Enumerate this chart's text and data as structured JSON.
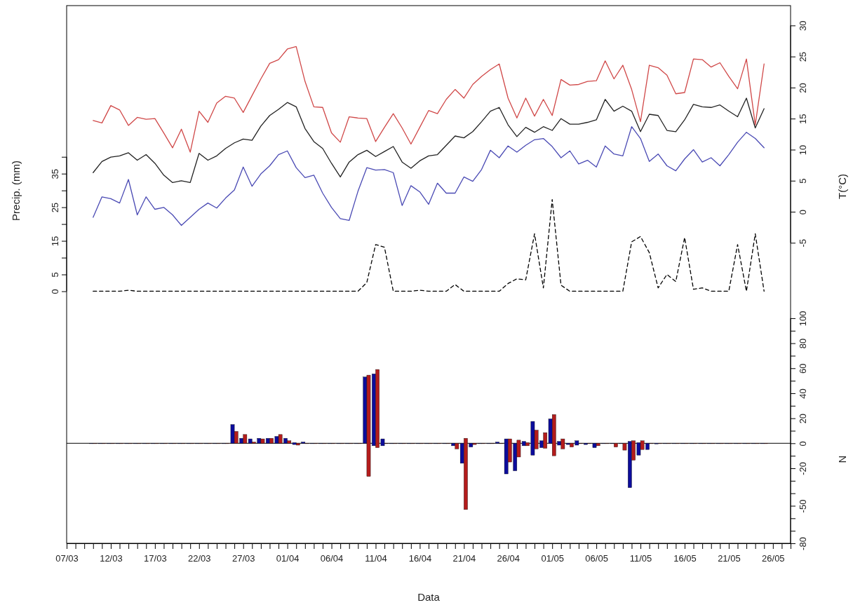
{
  "chart_data": {
    "type": "line",
    "xlabel": "Data",
    "ylabel": "Precip. (mm)",
    "y2label": "T(°C)",
    "y3label": "N",
    "x": [
      "--03-10",
      "--03-11",
      "--03-12",
      "--03-13",
      "--03-14",
      "--03-15",
      "--03-16",
      "--03-17",
      "--03-18",
      "--03-19",
      "--03-20",
      "--03-21",
      "--03-22",
      "--03-23",
      "--03-24",
      "--03-25",
      "--03-26",
      "--03-27",
      "--03-28",
      "--03-29",
      "--03-30",
      "--03-31",
      "--04-01",
      "--04-02",
      "--04-03",
      "--04-04",
      "--04-05",
      "--04-06",
      "--04-07",
      "--04-08",
      "--04-09",
      "--04-10",
      "--04-11",
      "--04-12",
      "--04-13",
      "--04-14",
      "--04-15",
      "--04-16",
      "--04-17",
      "--04-18",
      "--04-19",
      "--04-20",
      "--04-21",
      "--04-22",
      "--04-23",
      "--04-24",
      "--04-25",
      "--04-26",
      "--04-27",
      "--04-28",
      "--04-29",
      "--04-30",
      "--05-01",
      "--05-02",
      "--05-03",
      "--05-04",
      "--05-05",
      "--05-06",
      "--05-07",
      "--05-08",
      "--05-09",
      "--05-10",
      "--05-11",
      "--05-12",
      "--05-13",
      "--05-14",
      "--05-15",
      "--05-16",
      "--05-17",
      "--05-18",
      "--05-19",
      "--05-20",
      "--05-21",
      "--05-22",
      "--05-23",
      "--05-24",
      "--05-25"
    ],
    "xlim": [
      "--03-07",
      "--05-28"
    ],
    "xticks": [
      {
        "value": "--03-07",
        "label": "07/03"
      },
      {
        "value": "--03-08",
        "label": null
      },
      {
        "value": "--03-09",
        "label": null
      },
      {
        "value": "--03-10",
        "label": null
      },
      {
        "value": "--03-11",
        "label": null
      },
      {
        "value": "--03-12",
        "label": "12/03"
      },
      {
        "value": "--03-13",
        "label": null
      },
      {
        "value": "--03-14",
        "label": null
      },
      {
        "value": "--03-15",
        "label": null
      },
      {
        "value": "--03-16",
        "label": null
      },
      {
        "value": "--03-17",
        "label": "17/03"
      },
      {
        "value": "--03-18",
        "label": null
      },
      {
        "value": "--03-19",
        "label": null
      },
      {
        "value": "--03-20",
        "label": null
      },
      {
        "value": "--03-21",
        "label": null
      },
      {
        "value": "--03-22",
        "label": "22/03"
      },
      {
        "value": "--03-23",
        "label": null
      },
      {
        "value": "--03-24",
        "label": null
      },
      {
        "value": "--03-25",
        "label": null
      },
      {
        "value": "--03-26",
        "label": null
      },
      {
        "value": "--03-27",
        "label": "27/03"
      },
      {
        "value": "--03-28",
        "label": null
      },
      {
        "value": "--03-29",
        "label": null
      },
      {
        "value": "--03-30",
        "label": null
      },
      {
        "value": "--03-31",
        "label": null
      },
      {
        "value": "--04-01",
        "label": "01/04"
      },
      {
        "value": "--04-02",
        "label": null
      },
      {
        "value": "--04-03",
        "label": null
      },
      {
        "value": "--04-04",
        "label": null
      },
      {
        "value": "--04-05",
        "label": null
      },
      {
        "value": "--04-06",
        "label": "06/04"
      },
      {
        "value": "--04-07",
        "label": null
      },
      {
        "value": "--04-08",
        "label": null
      },
      {
        "value": "--04-09",
        "label": null
      },
      {
        "value": "--04-10",
        "label": null
      },
      {
        "value": "--04-11",
        "label": "11/04"
      },
      {
        "value": "--04-12",
        "label": null
      },
      {
        "value": "--04-13",
        "label": null
      },
      {
        "value": "--04-14",
        "label": null
      },
      {
        "value": "--04-15",
        "label": null
      },
      {
        "value": "--04-16",
        "label": "16/04"
      },
      {
        "value": "--04-17",
        "label": null
      },
      {
        "value": "--04-18",
        "label": null
      },
      {
        "value": "--04-19",
        "label": null
      },
      {
        "value": "--04-20",
        "label": null
      },
      {
        "value": "--04-21",
        "label": "21/04"
      },
      {
        "value": "--04-22",
        "label": null
      },
      {
        "value": "--04-23",
        "label": null
      },
      {
        "value": "--04-24",
        "label": null
      },
      {
        "value": "--04-25",
        "label": null
      },
      {
        "value": "--04-26",
        "label": "26/04"
      },
      {
        "value": "--04-27",
        "label": null
      },
      {
        "value": "--04-28",
        "label": null
      },
      {
        "value": "--04-29",
        "label": null
      },
      {
        "value": "--04-30",
        "label": null
      },
      {
        "value": "--05-01",
        "label": "01/05"
      },
      {
        "value": "--05-02",
        "label": null
      },
      {
        "value": "--05-03",
        "label": null
      },
      {
        "value": "--05-04",
        "label": null
      },
      {
        "value": "--05-05",
        "label": null
      },
      {
        "value": "--05-06",
        "label": "06/05"
      },
      {
        "value": "--05-07",
        "label": null
      },
      {
        "value": "--05-08",
        "label": null
      },
      {
        "value": "--05-09",
        "label": null
      },
      {
        "value": "--05-10",
        "label": null
      },
      {
        "value": "--05-11",
        "label": "11/05"
      },
      {
        "value": "--05-12",
        "label": null
      },
      {
        "value": "--05-13",
        "label": null
      },
      {
        "value": "--05-14",
        "label": null
      },
      {
        "value": "--05-15",
        "label": null
      },
      {
        "value": "--05-16",
        "label": "16/05"
      },
      {
        "value": "--05-17",
        "label": null
      },
      {
        "value": "--05-18",
        "label": null
      },
      {
        "value": "--05-19",
        "label": null
      },
      {
        "value": "--05-20",
        "label": null
      },
      {
        "value": "--05-21",
        "label": "21/05"
      },
      {
        "value": "--05-22",
        "label": null
      },
      {
        "value": "--05-23",
        "label": null
      },
      {
        "value": "--05-24",
        "label": null
      },
      {
        "value": "--05-25",
        "label": null
      },
      {
        "value": "--05-26",
        "label": "26/05"
      },
      {
        "value": "--05-27",
        "label": null
      },
      {
        "value": "--05-28",
        "label": null
      }
    ],
    "ylim": [
      -75,
      85
    ],
    "yticks": [
      0,
      5,
      {
        "value": 10,
        "label": null
      },
      15,
      {
        "value": 20,
        "label": null
      },
      25,
      {
        "value": 30,
        "label": null
      },
      35,
      {
        "value": 40,
        "label": null
      }
    ],
    "y2lim": [
      -53.4,
      33.2
    ],
    "y2ticks": [
      -5,
      0,
      5,
      10,
      15,
      20,
      25,
      30
    ],
    "y3lim": [
      -80,
      350
    ],
    "y3ticks": [
      -80,
      {
        "value": -70,
        "label": null
      },
      {
        "value": -60,
        "label": null
      },
      -50,
      {
        "value": -40,
        "label": null
      },
      {
        "value": -30,
        "label": null
      },
      -20,
      {
        "value": -10,
        "label": null
      },
      0,
      {
        "value": 10,
        "label": null
      },
      20,
      {
        "value": 30,
        "label": null
      },
      40,
      {
        "value": 50,
        "label": null
      },
      60,
      {
        "value": 70,
        "label": null
      },
      80,
      {
        "value": 90,
        "label": null
      },
      100
    ],
    "ref_lines": [
      {
        "axis": "y3",
        "value": 0,
        "color": "#000000"
      }
    ],
    "series": [
      {
        "axis": "y",
        "color": "#000000",
        "line_style": "dashed",
        "values": [
          0,
          0,
          0,
          0,
          0.3,
          0,
          0,
          0,
          0,
          0,
          0,
          0,
          0,
          0,
          0,
          0,
          0,
          0,
          0,
          0,
          0,
          0,
          0,
          0,
          0,
          0,
          0,
          0,
          0,
          0,
          0,
          2.6,
          13.9,
          13.1,
          0,
          0,
          0,
          0.3,
          0,
          0,
          0,
          2,
          0,
          0,
          0,
          0,
          0,
          2.3,
          3.7,
          3.4,
          17.1,
          1,
          27.3,
          1.8,
          0,
          0,
          0,
          0,
          0,
          0,
          0,
          14.7,
          16.3,
          11.5,
          1,
          5,
          2.9,
          16,
          0.6,
          1,
          0,
          0,
          0,
          13.9,
          0,
          17.1,
          0
        ]
      },
      {
        "axis": "y2",
        "color": "#d04848",
        "values": [
          14.7,
          14.3,
          17.1,
          16.4,
          13.9,
          15.2,
          14.9,
          15.0,
          12.7,
          10.3,
          13.3,
          9.6,
          16.2,
          14.4,
          17.5,
          18.6,
          18.3,
          16.0,
          18.7,
          21.4,
          23.9,
          24.5,
          26.2,
          26.6,
          21.0,
          16.9,
          16.8,
          12.7,
          11.2,
          15.3,
          15.1,
          15.0,
          11.3,
          13.6,
          15.8,
          13.5,
          10.9,
          13.6,
          16.3,
          15.8,
          18.1,
          19.7,
          18.3,
          20.5,
          21.8,
          22.9,
          23.8,
          18.3,
          15.1,
          18.3,
          15.4,
          18.1,
          15.5,
          21.3,
          20.4,
          20.5,
          21.0,
          21.1,
          24.3,
          21.4,
          23.6,
          19.7,
          14.5,
          23.6,
          23.2,
          22.0,
          19.0,
          19.2,
          24.6,
          24.5,
          23.3,
          24.0,
          21.8,
          19.8,
          24.6,
          14.0,
          23.8
        ]
      },
      {
        "axis": "y2",
        "color": "#222222",
        "values": [
          6.3,
          8.1,
          8.8,
          9.0,
          9.5,
          8.3,
          9.2,
          7.8,
          5.9,
          4.7,
          5.0,
          4.7,
          9.4,
          8.3,
          9.0,
          10.2,
          11.1,
          11.7,
          11.5,
          13.8,
          15.5,
          16.5,
          17.6,
          16.9,
          13.4,
          11.3,
          10.2,
          7.8,
          5.6,
          8.0,
          9.2,
          9.9,
          8.9,
          9.7,
          10.5,
          8.0,
          7.0,
          8.2,
          9.0,
          9.2,
          10.7,
          12.2,
          11.9,
          12.9,
          14.5,
          16.2,
          16.8,
          14.0,
          12.1,
          13.6,
          12.8,
          13.7,
          13.1,
          15.0,
          14.1,
          14.1,
          14.4,
          14.8,
          18.1,
          16.2,
          17.0,
          16.2,
          12.9,
          15.7,
          15.5,
          13.1,
          12.9,
          14.8,
          17.3,
          16.9,
          16.8,
          17.2,
          16.2,
          15.3,
          18.3,
          13.5,
          16.6
        ]
      },
      {
        "axis": "y2",
        "color": "#4a4ab4",
        "values": [
          -0.9,
          2.4,
          2.1,
          1.4,
          5.2,
          -0.5,
          2.4,
          0.4,
          0.7,
          -0.5,
          -2.2,
          -0.9,
          0.4,
          1.4,
          0.6,
          2.2,
          3.5,
          7.2,
          4.1,
          6.1,
          7.4,
          9.2,
          9.8,
          7.1,
          5.5,
          5.9,
          3.0,
          0.7,
          -1.1,
          -1.4,
          3.3,
          7.1,
          6.7,
          6.8,
          6.3,
          1.0,
          4.2,
          3.2,
          1.2,
          4.6,
          3.0,
          3.0,
          5.6,
          4.9,
          6.8,
          9.9,
          8.7,
          10.6,
          9.6,
          10.7,
          11.6,
          11.8,
          10.5,
          8.7,
          9.8,
          7.7,
          8.3,
          7.2,
          10.6,
          9.3,
          9.0,
          13.7,
          11.8,
          8.1,
          9.3,
          7.4,
          6.6,
          8.5,
          10.0,
          8.0,
          8.7,
          7.4,
          9.2,
          11.2,
          12.8,
          11.8,
          10.3
        ]
      },
      {
        "type": "bar",
        "axis": "y3",
        "color": "#0c0c9c",
        "base": [
          0,
          0,
          0,
          0,
          0,
          0,
          0,
          0,
          0,
          0,
          0,
          0,
          0,
          0,
          0,
          0,
          0,
          0,
          0,
          0,
          0,
          0,
          0,
          -1,
          0,
          0,
          0,
          0,
          0,
          0,
          0,
          0,
          -2,
          -2,
          0,
          0,
          0,
          0,
          0,
          0,
          0,
          -2,
          -16,
          -3,
          0,
          0,
          0,
          -24.5,
          -22,
          -2,
          -9.5,
          -3.5,
          0,
          -1.5,
          -1,
          -1.5,
          -1,
          -3.5,
          0,
          0,
          0,
          -35.5,
          -9.5,
          -5,
          -0.5,
          0,
          0,
          0,
          0,
          0,
          0,
          0,
          0,
          0,
          0,
          0,
          0
        ],
        "values": [
          0,
          0,
          0,
          0,
          0,
          0,
          0,
          0,
          0,
          0,
          0,
          0,
          0,
          0,
          0,
          0,
          15,
          4,
          3.5,
          4,
          4,
          5.5,
          4,
          1.5,
          1,
          0,
          0,
          0,
          0,
          0,
          0,
          53,
          57.5,
          5.5,
          0,
          0,
          0,
          0,
          0,
          0,
          0,
          2,
          16,
          3,
          0,
          0,
          1,
          28,
          22,
          3.5,
          27,
          5.5,
          19.5,
          3,
          1,
          3.5,
          1,
          3.5,
          0,
          0,
          0,
          37,
          10,
          5,
          0.5,
          0,
          0,
          0,
          0,
          0,
          0,
          0,
          0,
          0,
          0,
          0,
          0
        ]
      },
      {
        "type": "bar",
        "axis": "y3",
        "color": "#b41c1c",
        "base": [
          0,
          0,
          0,
          0,
          0,
          0,
          0,
          0,
          0,
          0,
          0,
          0,
          0,
          0,
          0,
          0,
          0,
          0,
          0,
          0,
          0,
          0,
          0,
          -1.5,
          0,
          0,
          0,
          0,
          0,
          0,
          0,
          -26.5,
          -3.5,
          0,
          0,
          0,
          0,
          0,
          0,
          0,
          0,
          -4.5,
          -53,
          -1,
          0,
          0,
          0,
          -15,
          -11,
          -2,
          -4.5,
          -4,
          -10,
          -4.5,
          -3,
          0,
          0,
          -2,
          0,
          -3,
          -5.5,
          -13.5,
          -5,
          0,
          0,
          0,
          0,
          0,
          0,
          0,
          0,
          0,
          0,
          0,
          0,
          0,
          0
        ],
        "values": [
          0,
          0,
          0,
          0,
          0,
          0,
          0,
          0,
          0,
          0,
          0,
          0,
          0,
          0,
          0,
          0,
          9.5,
          7,
          1,
          3.5,
          4,
          7,
          2,
          1.5,
          0,
          0,
          0,
          0,
          0,
          0,
          0,
          81,
          62.5,
          0,
          0,
          0,
          0,
          0,
          0,
          0,
          0,
          4.5,
          57,
          1,
          0,
          0,
          0,
          18.5,
          13.5,
          2.5,
          15,
          12.5,
          33,
          8,
          3,
          0,
          0,
          2,
          0,
          3,
          5.5,
          15.5,
          7,
          0,
          0,
          0,
          0,
          0,
          0,
          0,
          0,
          0,
          0,
          0,
          0,
          0,
          0
        ]
      }
    ]
  }
}
